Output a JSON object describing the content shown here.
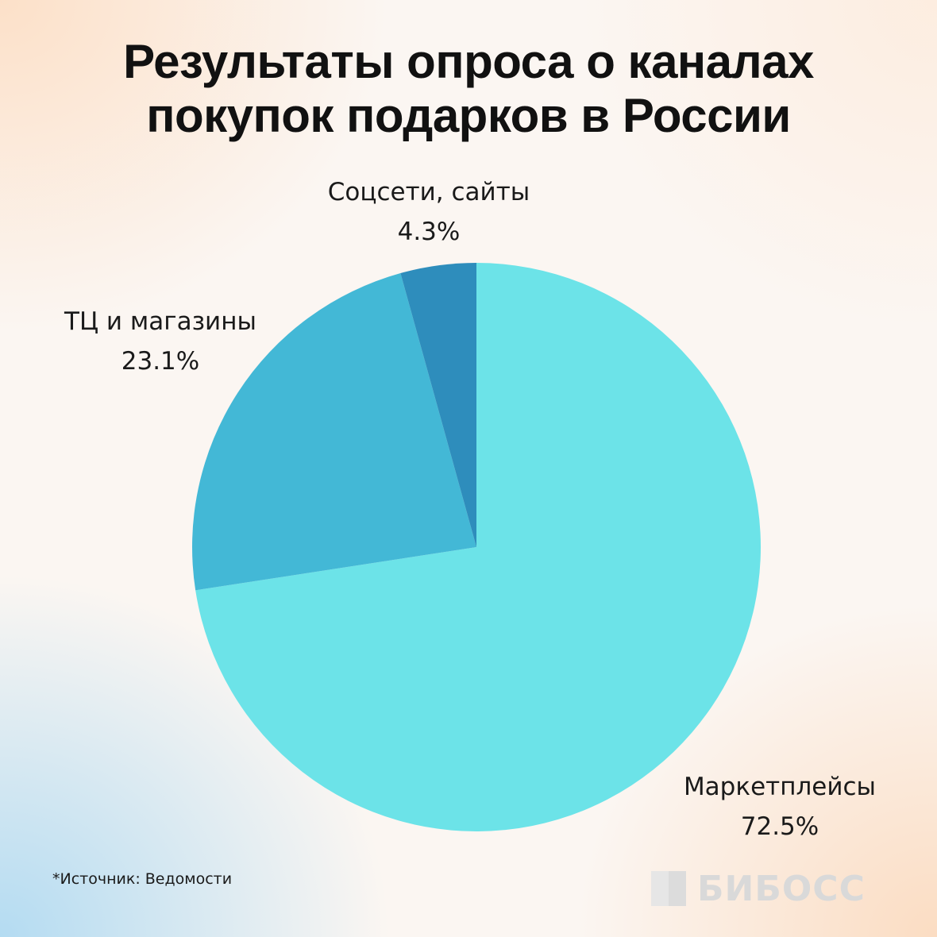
{
  "title_lines": [
    "Результаты опроса о каналах",
    "покупок подарков в России"
  ],
  "chart_data": {
    "type": "pie",
    "title": "Результаты опроса о каналах покупок подарков в России",
    "start_angle": "12 o'clock",
    "direction": "clockwise",
    "slices": [
      {
        "label": "Маркетплейсы",
        "value": 72.5,
        "value_label": "72.5%",
        "color": "#6ce3e8"
      },
      {
        "label": "ТЦ и магазины",
        "value": 23.1,
        "value_label": "23.1%",
        "color": "#43b8d6"
      },
      {
        "label": "Соцсети, сайты",
        "value": 4.3,
        "value_label": "4.3%",
        "color": "#2e8dbc"
      }
    ]
  },
  "source": "*Источник: Ведомости",
  "logo": "БИБОСС"
}
